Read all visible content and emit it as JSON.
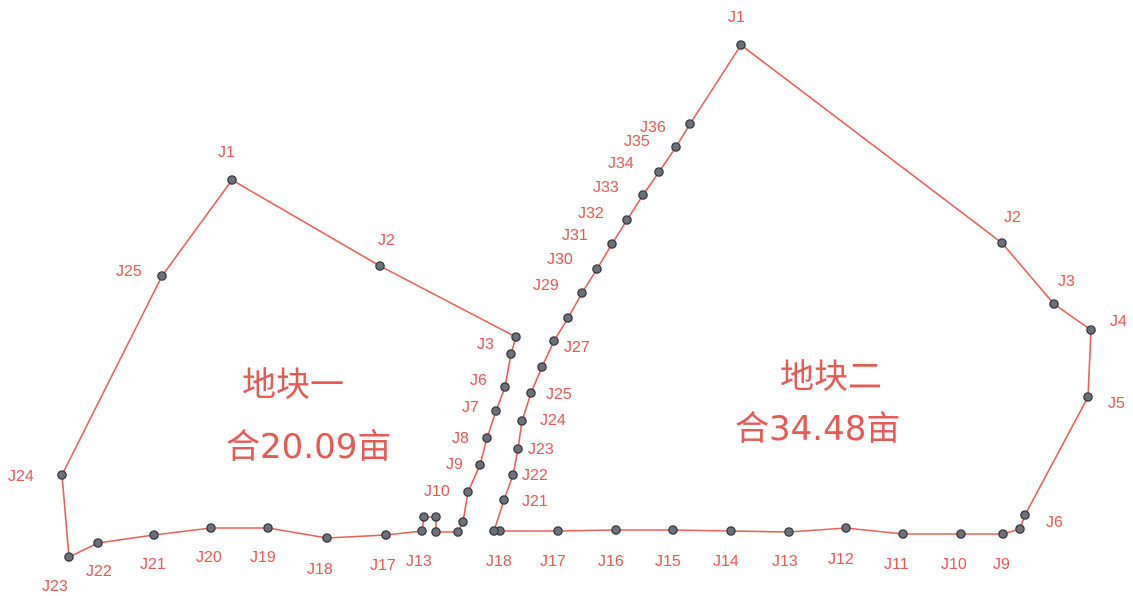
{
  "parcels": [
    {
      "id": "parcel-1",
      "name": "地块一",
      "area": "合20.09亩",
      "line_color": "#e8605a",
      "text_color": "#e65a55",
      "vertex_color": "#6c7078",
      "labeled_vertices": [
        "J1",
        "J2",
        "J3",
        "J6",
        "J7",
        "J8",
        "J9",
        "J10",
        "J13",
        "J17",
        "J18",
        "J19",
        "J20",
        "J21",
        "J22",
        "J23",
        "J24",
        "J25"
      ]
    },
    {
      "id": "parcel-2",
      "name": "地块二",
      "area": "合34.48亩",
      "line_color": "#e8605a",
      "text_color": "#e65a55",
      "vertex_color": "#6c7078",
      "labeled_vertices": [
        "J1",
        "J2",
        "J3",
        "J4",
        "J5",
        "J6",
        "J9",
        "J10",
        "J11",
        "J12",
        "J13",
        "J14",
        "J15",
        "J16",
        "J17",
        "J18",
        "J21",
        "J22",
        "J23",
        "J24",
        "J25",
        "J27",
        "J29",
        "J30",
        "J31",
        "J32",
        "J33",
        "J34",
        "J35",
        "J36"
      ]
    }
  ]
}
